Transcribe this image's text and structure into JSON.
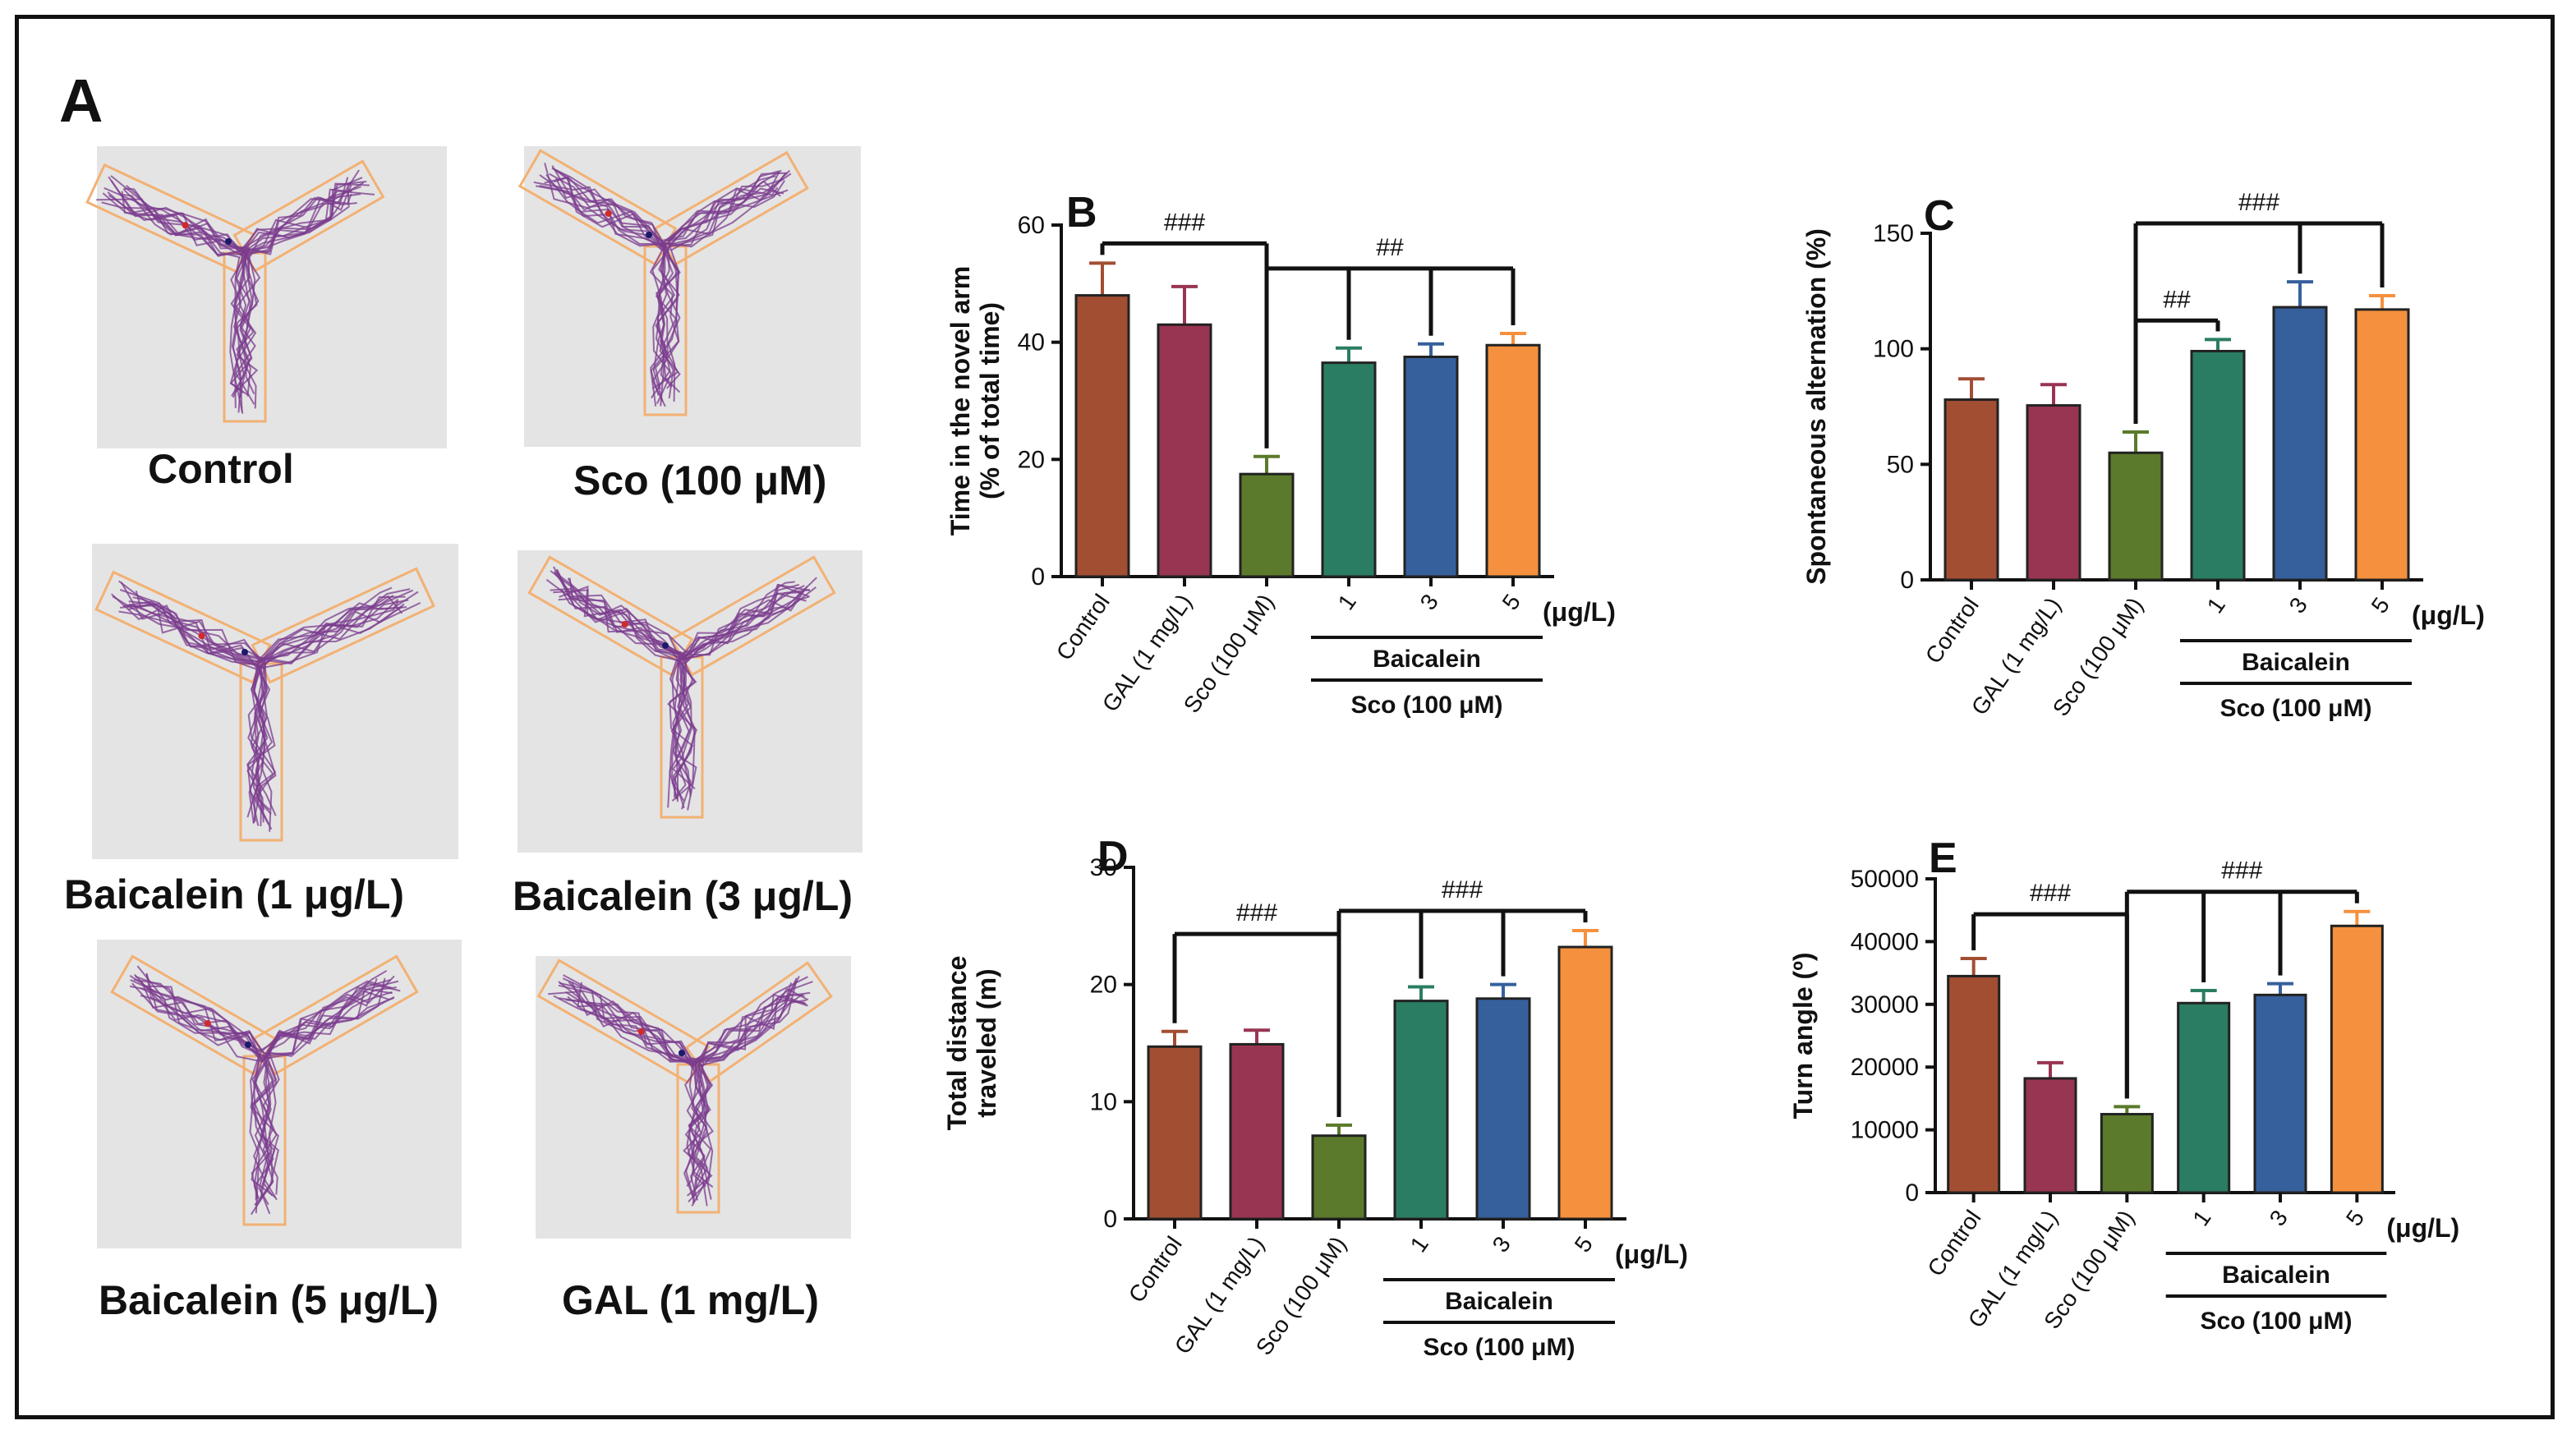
{
  "panel_a": {
    "label": "A",
    "captions": [
      "Control",
      "Sco (100 μM)",
      "Baicalein (1 μg/L)",
      "Baicalein (3 μg/L)",
      "Baicalein (5 μg/L)",
      "GAL (1 mg/L)"
    ]
  },
  "colors": {
    "control": "#a24e33",
    "gal": "#983552",
    "sco": "#5b7a2b",
    "baicalein_1": "#2a7d63",
    "baicalein_3": "#36609c",
    "baicalein_5": "#f5913e",
    "maze_outline": "#f2b173",
    "maze_track": "#7b3c8e",
    "maze_bg": "#e4e4e4"
  },
  "chart_data": [
    {
      "panel": "B",
      "type": "bar",
      "ylabel_lines": [
        "Time in the novel arm",
        "(% of total time)"
      ],
      "ylim": [
        0,
        60
      ],
      "yticks": [
        0,
        20,
        40,
        60
      ],
      "categories": [
        "Control",
        "GAL (1 mg/L)",
        "Sco (100 μM)",
        "1",
        "3",
        "5"
      ],
      "values": [
        48,
        43,
        17.5,
        36.5,
        37.5,
        39.5
      ],
      "errors": [
        5.5,
        6.5,
        3,
        2.5,
        2.2,
        2
      ],
      "unit_label": "(μg/L)",
      "group_label": "Baicalein",
      "sco_label": "Sco (100 μM)",
      "annotations": [
        {
          "text": "###",
          "from": 0,
          "to": [
            2
          ]
        },
        {
          "text": "##",
          "from": 2,
          "to": [
            3,
            4,
            5
          ]
        }
      ]
    },
    {
      "panel": "C",
      "type": "bar",
      "ylabel_lines": [
        "Spontaneous alternation (%)"
      ],
      "ylim": [
        0,
        150
      ],
      "yticks": [
        0,
        50,
        100,
        150
      ],
      "categories": [
        "Control",
        "GAL (1 mg/L)",
        "Sco (100 μM)",
        "1",
        "3",
        "5"
      ],
      "values": [
        78,
        75.5,
        55,
        99,
        118,
        117
      ],
      "errors": [
        9,
        9,
        9,
        5,
        11,
        6
      ],
      "unit_label": "(μg/L)",
      "group_label": "Baicalein",
      "sco_label": "Sco (100 μM)",
      "annotations": [
        {
          "text": "###",
          "from": 2,
          "to": [
            4,
            5
          ]
        },
        {
          "text": "##",
          "from": 2,
          "to": [
            3
          ]
        }
      ]
    },
    {
      "panel": "D",
      "type": "bar",
      "ylabel_lines": [
        "Total distance",
        "traveled (m)"
      ],
      "ylim": [
        0,
        30
      ],
      "yticks": [
        0,
        10,
        20,
        30
      ],
      "categories": [
        "Control",
        "GAL (1 mg/L)",
        "Sco (100 μM)",
        "1",
        "3",
        "5"
      ],
      "values": [
        14.7,
        14.9,
        7.1,
        18.6,
        18.8,
        23.2
      ],
      "errors": [
        1.3,
        1.2,
        0.9,
        1.2,
        1.2,
        1.4
      ],
      "unit_label": "(μg/L)",
      "group_label": "Baicalein",
      "sco_label": "Sco (100 μM)",
      "annotations": [
        {
          "text": "###",
          "from": 0,
          "to": [
            2
          ]
        },
        {
          "text": "###",
          "from": 2,
          "to": [
            3,
            4,
            5
          ]
        }
      ]
    },
    {
      "panel": "E",
      "type": "bar",
      "ylabel_lines": [
        "Turn angle (º)"
      ],
      "ylim": [
        0,
        50000
      ],
      "yticks": [
        0,
        10000,
        20000,
        30000,
        40000,
        50000
      ],
      "categories": [
        "Control",
        "GAL (1 mg/L)",
        "Sco (100 μM)",
        "1",
        "3",
        "5"
      ],
      "values": [
        34500,
        18200,
        12500,
        30200,
        31500,
        42500
      ],
      "errors": [
        2800,
        2500,
        1200,
        2000,
        1800,
        2300
      ],
      "unit_label": "(μg/L)",
      "group_label": "Baicalein",
      "sco_label": "Sco (100 μM)",
      "annotations": [
        {
          "text": "###",
          "from": 0,
          "to": [
            2
          ]
        },
        {
          "text": "###",
          "from": 2,
          "to": [
            3,
            4,
            5
          ]
        }
      ]
    }
  ]
}
